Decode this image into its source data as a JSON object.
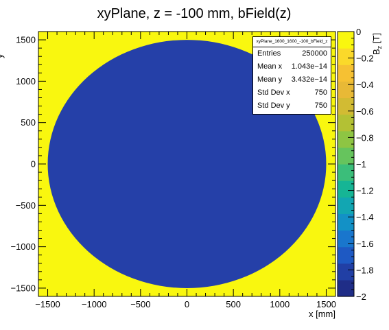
{
  "chart_data": {
    "type": "heatmap",
    "title": "xyPlane, z = -100 mm, bField(z)",
    "xlabel": "x [mm]",
    "ylabel": "y",
    "zlabel": "B_z [T]",
    "xlim": [
      -1600,
      1600
    ],
    "ylim": [
      -1600,
      1600
    ],
    "zlim": [
      -2,
      0
    ],
    "x_ticks": [
      -1500,
      -1000,
      -500,
      0,
      500,
      1000,
      1500
    ],
    "x_tick_labels": [
      "−1500",
      "−1000",
      "−500",
      "0",
      "500",
      "1000",
      "1500"
    ],
    "y_ticks": [
      -1500,
      -1000,
      -500,
      0,
      500,
      1000,
      1500
    ],
    "y_tick_labels": [
      "−1500",
      "−1000",
      "−500",
      "0",
      "500",
      "1000",
      "1500"
    ],
    "z_ticks": [
      0,
      -0.2,
      -0.4,
      -0.6,
      -0.8,
      -1,
      -1.2,
      -1.4,
      -1.6,
      -1.8,
      -2
    ],
    "z_tick_labels": [
      "0",
      "−0.2",
      "−0.4",
      "−0.6",
      "−0.8",
      "−1",
      "−1.2",
      "−1.4",
      "−1.6",
      "−1.8",
      "−2"
    ],
    "regions": [
      {
        "shape": "disc",
        "center": [
          0,
          0
        ],
        "radius": 1500,
        "value": -2
      },
      {
        "shape": "outside_disc",
        "value": 0
      }
    ],
    "palette": [
      "#1f2d87",
      "#213fa5",
      "#1e59c3",
      "#1976cd",
      "#1391c6",
      "#12a6b2",
      "#16b595",
      "#3bbe7a",
      "#66c45d",
      "#8ec543",
      "#b3c134",
      "#d2bb33",
      "#e8b936",
      "#f6c133",
      "#fbd92a",
      "#f9f70f"
    ],
    "inside_color": "#2540a8",
    "outside_color": "#f9f70f"
  },
  "stats": {
    "name": "xyPlane_1600_1600_-100_bField_z",
    "rows": [
      {
        "label": "Entries",
        "value": "250000"
      },
      {
        "label": "Mean x",
        "value": "1.043e−14"
      },
      {
        "label": "Mean y",
        "value": "3.432e−14"
      },
      {
        "label": "Std Dev x",
        "value": "750"
      },
      {
        "label": "Std Dev y",
        "value": "750"
      }
    ]
  }
}
